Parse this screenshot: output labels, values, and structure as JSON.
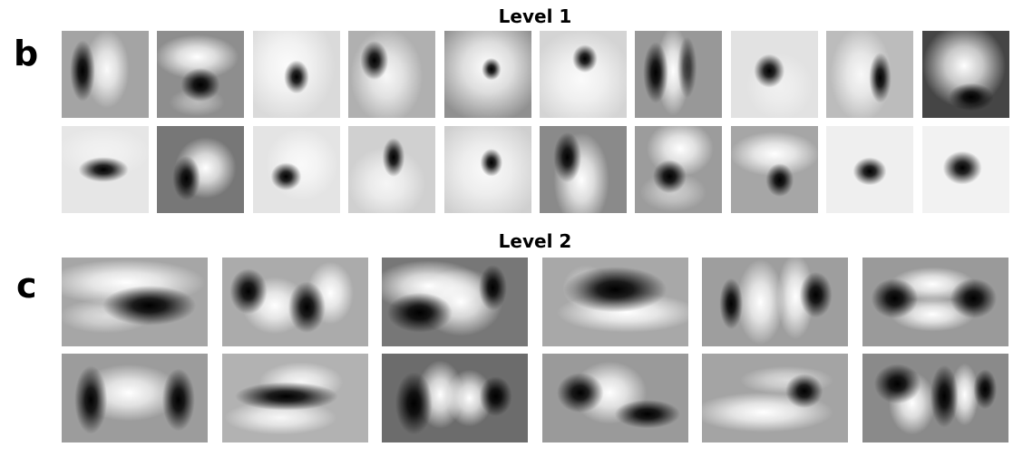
{
  "panels": {
    "b": {
      "letter": "b",
      "title": "Level 1",
      "rows": [
        [
          {
            "bg": "#a4a4a4",
            "blobs": [
              [
                "d",
                0.24,
                0.46,
                0.09,
                0.22,
                1
              ],
              [
                "l",
                0.52,
                0.44,
                0.16,
                0.28,
                0.95
              ]
            ]
          },
          {
            "bg": "#8e8e8e",
            "blobs": [
              [
                "l",
                0.46,
                0.3,
                0.3,
                0.16,
                1
              ],
              [
                "d",
                0.5,
                0.62,
                0.14,
                0.12,
                1
              ],
              [
                "l",
                0.46,
                0.82,
                0.2,
                0.1,
                0.4
              ]
            ]
          },
          {
            "bg": "#dadada",
            "blobs": [
              [
                "l",
                0.4,
                0.4,
                0.34,
                0.4,
                0.9
              ],
              [
                "d",
                0.5,
                0.53,
                0.09,
                0.12,
                1
              ]
            ]
          },
          {
            "bg": "#b0b0b0",
            "blobs": [
              [
                "d",
                0.3,
                0.34,
                0.1,
                0.14,
                1
              ],
              [
                "l",
                0.44,
                0.52,
                0.26,
                0.34,
                0.9
              ]
            ]
          },
          {
            "bg": "#909090",
            "blobs": [
              [
                "l",
                0.5,
                0.42,
                0.4,
                0.4,
                1
              ],
              [
                "d",
                0.54,
                0.44,
                0.07,
                0.08,
                1
              ]
            ]
          },
          {
            "bg": "#d4d4d4",
            "blobs": [
              [
                "l",
                0.48,
                0.56,
                0.36,
                0.36,
                0.9
              ],
              [
                "d",
                0.52,
                0.32,
                0.09,
                0.1,
                1
              ]
            ]
          },
          {
            "bg": "#989898",
            "blobs": [
              [
                "d",
                0.24,
                0.48,
                0.09,
                0.22,
                1
              ],
              [
                "l",
                0.44,
                0.46,
                0.12,
                0.32,
                1
              ],
              [
                "d",
                0.6,
                0.42,
                0.07,
                0.22,
                0.7
              ]
            ]
          },
          {
            "bg": "#e2e2e2",
            "blobs": [
              [
                "d",
                0.44,
                0.46,
                0.11,
                0.12,
                1
              ],
              [
                "l",
                0.56,
                0.64,
                0.24,
                0.24,
                0.5
              ]
            ]
          },
          {
            "bg": "#bcbcbc",
            "blobs": [
              [
                "l",
                0.4,
                0.5,
                0.22,
                0.34,
                0.9
              ],
              [
                "d",
                0.62,
                0.54,
                0.08,
                0.18,
                1
              ]
            ]
          },
          {
            "bg": "#454545",
            "blobs": [
              [
                "l",
                0.48,
                0.4,
                0.3,
                0.3,
                1
              ],
              [
                "d",
                0.56,
                0.76,
                0.16,
                0.1,
                1
              ]
            ]
          }
        ],
        [
          {
            "bg": "#e6e6e6",
            "blobs": [
              [
                "d",
                0.48,
                0.5,
                0.18,
                0.09,
                1
              ],
              [
                "l",
                0.48,
                0.3,
                0.34,
                0.18,
                0.5
              ]
            ]
          },
          {
            "bg": "#777777",
            "blobs": [
              [
                "l",
                0.56,
                0.48,
                0.22,
                0.22,
                1
              ],
              [
                "d",
                0.34,
                0.6,
                0.1,
                0.16,
                1
              ]
            ]
          },
          {
            "bg": "#e4e4e4",
            "blobs": [
              [
                "l",
                0.56,
                0.44,
                0.26,
                0.26,
                0.8
              ],
              [
                "d",
                0.38,
                0.58,
                0.11,
                0.1,
                1
              ]
            ]
          },
          {
            "bg": "#d0d0d0",
            "blobs": [
              [
                "d",
                0.52,
                0.36,
                0.08,
                0.14,
                1
              ],
              [
                "l",
                0.44,
                0.66,
                0.28,
                0.26,
                0.8
              ]
            ]
          },
          {
            "bg": "#cfcfcf",
            "blobs": [
              [
                "l",
                0.48,
                0.5,
                0.4,
                0.4,
                0.9
              ],
              [
                "d",
                0.54,
                0.42,
                0.08,
                0.1,
                1
              ]
            ]
          },
          {
            "bg": "#8a8a8a",
            "blobs": [
              [
                "d",
                0.32,
                0.36,
                0.1,
                0.18,
                1
              ],
              [
                "l",
                0.48,
                0.62,
                0.2,
                0.34,
                1
              ]
            ]
          },
          {
            "bg": "#9c9c9c",
            "blobs": [
              [
                "l",
                0.52,
                0.26,
                0.24,
                0.2,
                1
              ],
              [
                "d",
                0.4,
                0.58,
                0.12,
                0.12,
                1
              ],
              [
                "l",
                0.44,
                0.76,
                0.24,
                0.14,
                0.5
              ]
            ]
          },
          {
            "bg": "#a6a6a6",
            "blobs": [
              [
                "l",
                0.5,
                0.32,
                0.32,
                0.16,
                1
              ],
              [
                "d",
                0.56,
                0.62,
                0.1,
                0.12,
                1
              ]
            ]
          },
          {
            "bg": "#efefef",
            "blobs": [
              [
                "d",
                0.5,
                0.52,
                0.12,
                0.1,
                1
              ]
            ]
          },
          {
            "bg": "#f2f2f2",
            "blobs": [
              [
                "d",
                0.46,
                0.48,
                0.14,
                0.12,
                1
              ]
            ]
          }
        ]
      ]
    },
    "c": {
      "letter": "c",
      "title": "Level 2",
      "rows": [
        [
          {
            "bg": "#a6a6a6",
            "blobs": [
              [
                "l",
                0.44,
                0.28,
                0.34,
                0.16,
                1
              ],
              [
                "d",
                0.6,
                0.54,
                0.2,
                0.14,
                1
              ],
              [
                "l",
                0.3,
                0.66,
                0.2,
                0.12,
                0.6
              ]
            ]
          },
          {
            "bg": "#ababab",
            "blobs": [
              [
                "d",
                0.18,
                0.38,
                0.08,
                0.16,
                1
              ],
              [
                "l",
                0.36,
                0.54,
                0.14,
                0.2,
                1
              ],
              [
                "d",
                0.58,
                0.56,
                0.08,
                0.18,
                1
              ],
              [
                "l",
                0.74,
                0.4,
                0.1,
                0.22,
                1
              ]
            ]
          },
          {
            "bg": "#777777",
            "blobs": [
              [
                "l",
                0.32,
                0.32,
                0.24,
                0.18,
                1
              ],
              [
                "d",
                0.26,
                0.62,
                0.14,
                0.14,
                1
              ],
              [
                "l",
                0.54,
                0.5,
                0.18,
                0.24,
                1
              ],
              [
                "d",
                0.76,
                0.34,
                0.06,
                0.16,
                1
              ]
            ]
          },
          {
            "bg": "#a8a8a8",
            "blobs": [
              [
                "d",
                0.5,
                0.36,
                0.22,
                0.16,
                1
              ],
              [
                "l",
                0.58,
                0.62,
                0.3,
                0.14,
                1
              ],
              [
                "l",
                0.3,
                0.34,
                0.1,
                0.16,
                0.5
              ]
            ]
          },
          {
            "bg": "#9e9e9e",
            "blobs": [
              [
                "d",
                0.2,
                0.52,
                0.05,
                0.18,
                1
              ],
              [
                "l",
                0.4,
                0.5,
                0.1,
                0.3,
                1
              ],
              [
                "l",
                0.64,
                0.44,
                0.08,
                0.3,
                1
              ],
              [
                "d",
                0.78,
                0.42,
                0.07,
                0.16,
                1
              ]
            ]
          },
          {
            "bg": "#9a9a9a",
            "blobs": [
              [
                "d",
                0.22,
                0.46,
                0.1,
                0.14,
                1
              ],
              [
                "l",
                0.48,
                0.3,
                0.18,
                0.12,
                1
              ],
              [
                "l",
                0.48,
                0.64,
                0.18,
                0.12,
                1
              ],
              [
                "d",
                0.76,
                0.46,
                0.1,
                0.14,
                1
              ]
            ]
          }
        ],
        [
          {
            "bg": "#9c9c9c",
            "blobs": [
              [
                "d",
                0.2,
                0.52,
                0.07,
                0.24,
                1
              ],
              [
                "l",
                0.46,
                0.44,
                0.22,
                0.2,
                1
              ],
              [
                "d",
                0.8,
                0.52,
                0.07,
                0.22,
                1
              ]
            ]
          },
          {
            "bg": "#b2b2b2",
            "blobs": [
              [
                "l",
                0.54,
                0.32,
                0.18,
                0.14,
                0.9
              ],
              [
                "d",
                0.44,
                0.48,
                0.22,
                0.1,
                1
              ],
              [
                "l",
                0.4,
                0.72,
                0.24,
                0.12,
                0.9
              ]
            ]
          },
          {
            "bg": "#6c6c6c",
            "blobs": [
              [
                "d",
                0.22,
                0.56,
                0.08,
                0.22,
                1
              ],
              [
                "l",
                0.4,
                0.46,
                0.1,
                0.24,
                1
              ],
              [
                "l",
                0.6,
                0.5,
                0.1,
                0.2,
                1
              ],
              [
                "d",
                0.78,
                0.48,
                0.07,
                0.14,
                1
              ]
            ]
          },
          {
            "bg": "#9a9a9a",
            "blobs": [
              [
                "d",
                0.26,
                0.44,
                0.1,
                0.14,
                1
              ],
              [
                "l",
                0.46,
                0.44,
                0.16,
                0.22,
                1
              ],
              [
                "d",
                0.72,
                0.68,
                0.14,
                0.1,
                1
              ]
            ]
          },
          {
            "bg": "#a4a4a4",
            "blobs": [
              [
                "l",
                0.42,
                0.66,
                0.3,
                0.14,
                1
              ],
              [
                "d",
                0.7,
                0.42,
                0.08,
                0.12,
                1
              ],
              [
                "l",
                0.58,
                0.3,
                0.2,
                0.1,
                0.6
              ]
            ]
          },
          {
            "bg": "#8a8a8a",
            "blobs": [
              [
                "d",
                0.24,
                0.34,
                0.1,
                0.14,
                1
              ],
              [
                "l",
                0.34,
                0.56,
                0.1,
                0.22,
                1
              ],
              [
                "d",
                0.56,
                0.48,
                0.06,
                0.22,
                1
              ],
              [
                "l",
                0.7,
                0.46,
                0.06,
                0.22,
                1
              ],
              [
                "d",
                0.84,
                0.4,
                0.05,
                0.14,
                1
              ]
            ]
          }
        ]
      ]
    }
  },
  "colors": {
    "light": "#ffffff",
    "dark": "#000000"
  }
}
